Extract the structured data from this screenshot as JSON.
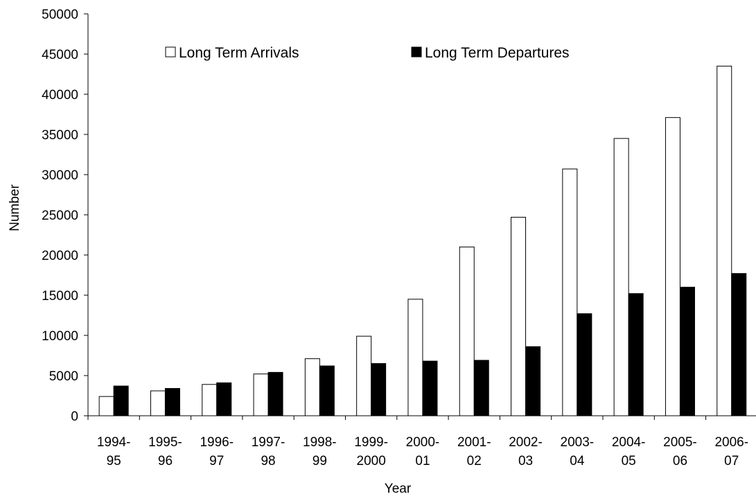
{
  "chart_data": {
    "type": "bar",
    "xlabel": "Year",
    "ylabel": "Number",
    "ylim": [
      0,
      50000
    ],
    "yticks": [
      0,
      5000,
      10000,
      15000,
      20000,
      25000,
      30000,
      35000,
      40000,
      45000,
      50000
    ],
    "yticks_labels": [
      "0",
      "5000",
      "10000",
      "15000",
      "20000",
      "25000",
      "30000",
      "35000",
      "40000",
      "45000",
      "50000"
    ],
    "categories": [
      [
        "1994-",
        "95"
      ],
      [
        "1995-",
        "96"
      ],
      [
        "1996-",
        "97"
      ],
      [
        "1997-",
        "98"
      ],
      [
        "1998-",
        "99"
      ],
      [
        "1999-",
        "2000"
      ],
      [
        "2000-",
        "01"
      ],
      [
        "2001-",
        "02"
      ],
      [
        "2002-",
        "03"
      ],
      [
        "2003-",
        "04"
      ],
      [
        "2004-",
        "05"
      ],
      [
        "2005-",
        "06"
      ],
      [
        "2006-",
        "07"
      ]
    ],
    "series": [
      {
        "name": "Long Term Arrivals",
        "color": "#ffffff",
        "values": [
          2400,
          3100,
          3900,
          5200,
          7100,
          9900,
          14500,
          21000,
          24700,
          30700,
          34500,
          37100,
          43500
        ]
      },
      {
        "name": "Long Term Departures",
        "color": "#000000",
        "values": [
          3700,
          3400,
          4100,
          5400,
          6200,
          6500,
          6800,
          6900,
          8600,
          12700,
          15200,
          16000,
          17700
        ]
      }
    ],
    "grid": false,
    "legend": {
      "position": "top",
      "orientation": "horizontal"
    }
  }
}
